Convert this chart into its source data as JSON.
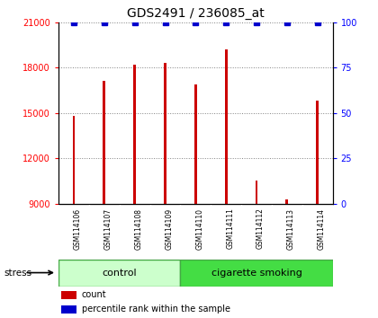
{
  "title": "GDS2491 / 236085_at",
  "samples": [
    "GSM114106",
    "GSM114107",
    "GSM114108",
    "GSM114109",
    "GSM114110",
    "GSM114111",
    "GSM114112",
    "GSM114113",
    "GSM114114"
  ],
  "counts": [
    14800,
    17100,
    18200,
    18300,
    16900,
    19200,
    10500,
    9300,
    15800
  ],
  "percentile": [
    100,
    100,
    100,
    100,
    100,
    100,
    100,
    100,
    100
  ],
  "ylim_left": [
    9000,
    21000
  ],
  "ylim_right": [
    0,
    100
  ],
  "yticks_left": [
    9000,
    12000,
    15000,
    18000,
    21000
  ],
  "yticks_right": [
    0,
    25,
    50,
    75,
    100
  ],
  "bar_color": "#cc0000",
  "dot_color": "#0000cc",
  "group_control": {
    "label": "control",
    "indices": [
      0,
      1,
      2,
      3
    ],
    "color": "#ccffcc"
  },
  "group_smoking": {
    "label": "cigarette smoking",
    "indices": [
      4,
      5,
      6,
      7,
      8
    ],
    "color": "#44dd44"
  },
  "stress_label": "stress",
  "legend_count": "count",
  "legend_pct": "percentile rank within the sample",
  "background_color": "#ffffff",
  "tick_area_color": "#cccccc",
  "bar_width": 0.08,
  "title_fontsize": 10,
  "axis_fontsize": 7,
  "sample_fontsize": 5.5,
  "group_fontsize": 8,
  "legend_fontsize": 7
}
